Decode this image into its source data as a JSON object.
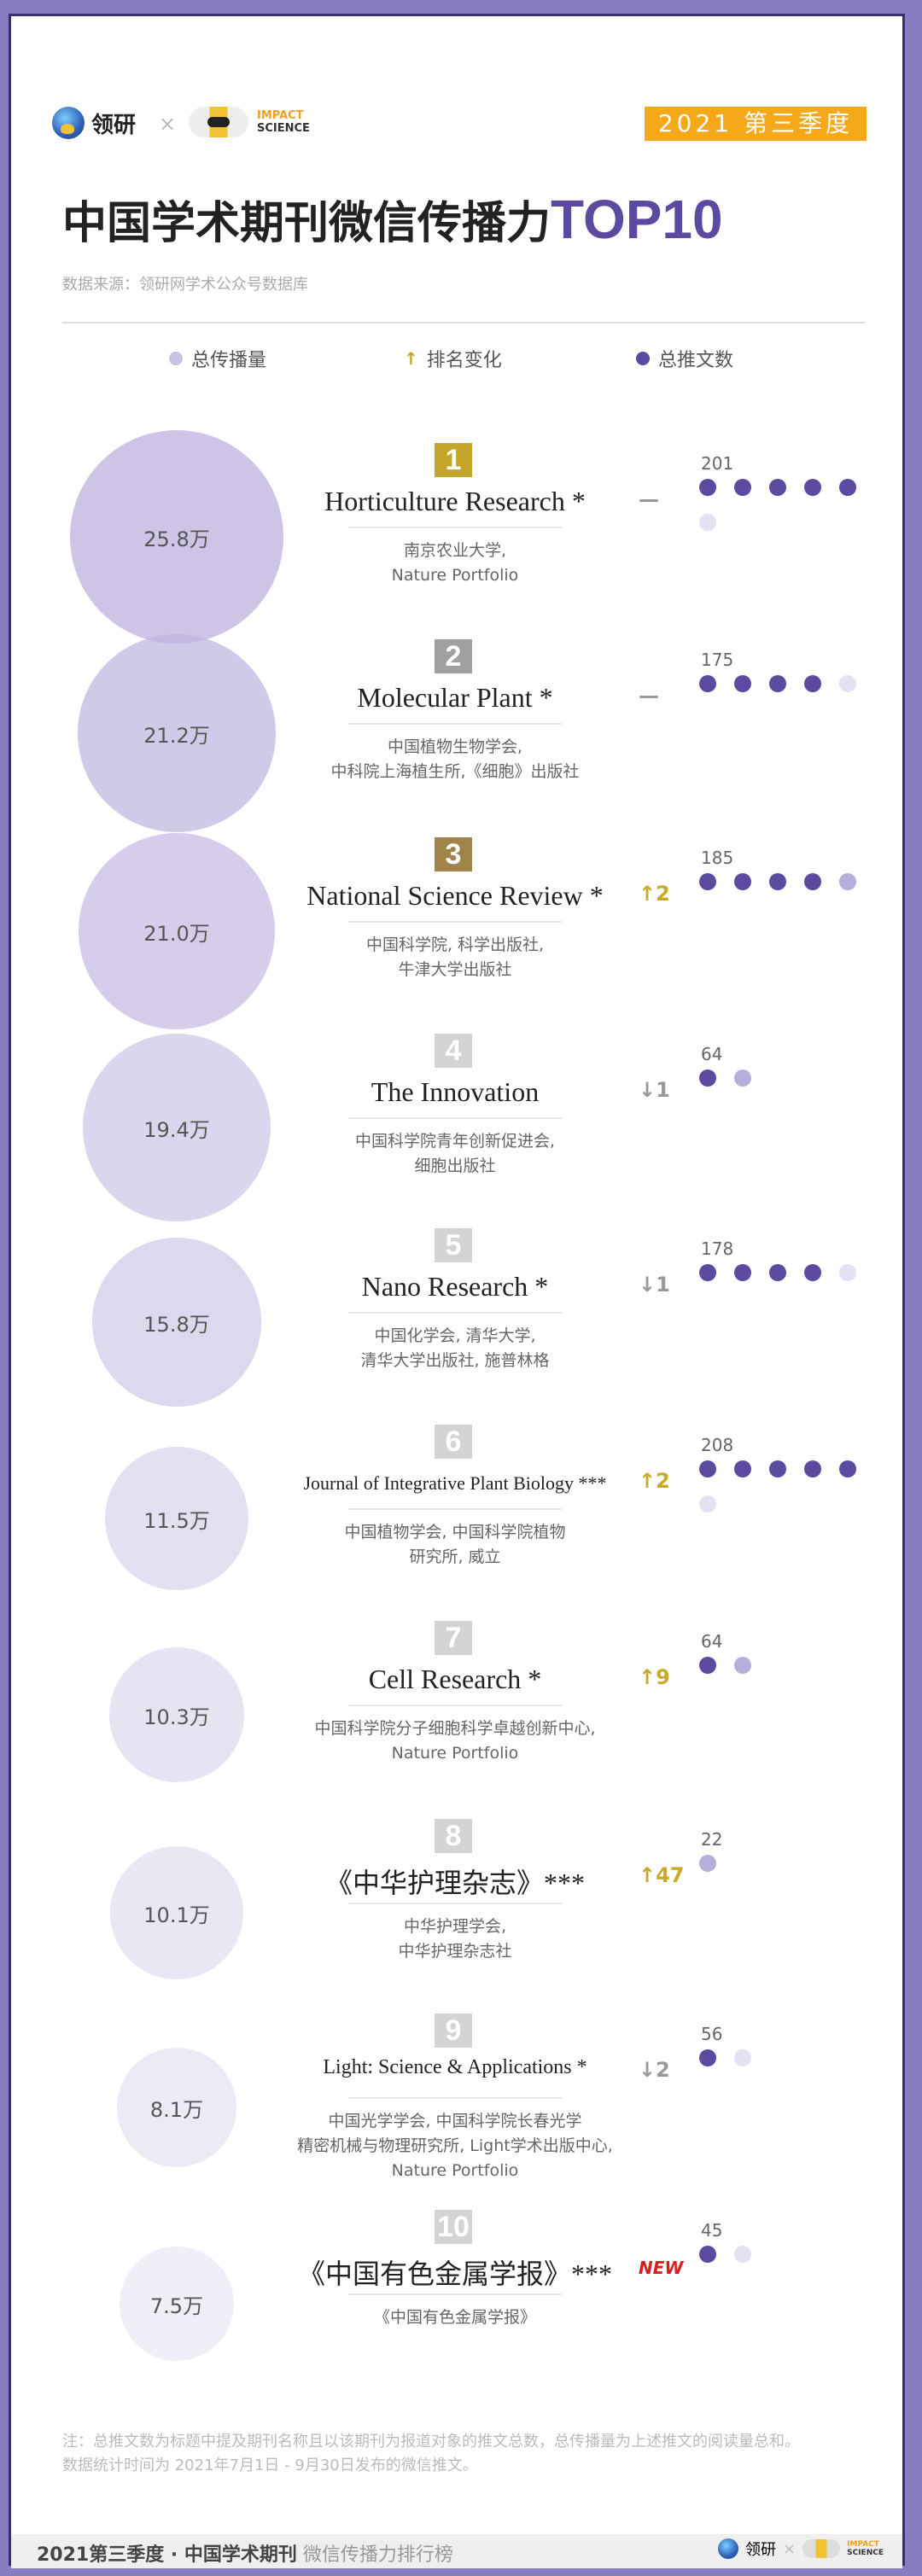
{
  "header": {
    "logo_text": "领研",
    "times": "×",
    "impact_line1": "IMPACT",
    "impact_line2": "SCIENCE",
    "quarter_badge": "2021 第三季度",
    "title_main": "中国学术期刊微信传播力",
    "title_top": "TOP10",
    "source": "数据来源：领研网学术公众号数据库"
  },
  "legend": {
    "spread": "总传播量",
    "rank_change": "排名变化",
    "posts": "总推文数",
    "arrow": "↑"
  },
  "colors": {
    "purple_dark": "#5b4aa0",
    "purple_light": "#b8aedb",
    "bubble": "#d6cfe9",
    "gold": "#c4a62a",
    "badge": "#f4a81a",
    "new": "#d62020"
  },
  "journals": [
    {
      "rank": "1",
      "name": "Horticulture Research *",
      "publisher": [
        "南京农业大学,",
        "Nature Portfolio"
      ],
      "spread": "25.8万",
      "change": "—",
      "change_type": "same",
      "posts": "201",
      "badge_color": "#c4a62a"
    },
    {
      "rank": "2",
      "name": "Molecular Plant *",
      "publisher": [
        "中国植物生物学会,",
        "中科院上海植生所,《细胞》出版社"
      ],
      "spread": "21.2万",
      "change": "—",
      "change_type": "same",
      "posts": "175",
      "badge_color": "#a0a0a0"
    },
    {
      "rank": "3",
      "name": "National Science Review *",
      "publisher": [
        "中国科学院, 科学出版社,",
        "牛津大学出版社"
      ],
      "spread": "21.0万",
      "change": "↑2",
      "change_type": "up",
      "posts": "185",
      "badge_color": "#a0844a"
    },
    {
      "rank": "4",
      "name": "The Innovation",
      "publisher": [
        "中国科学院青年创新促进会,",
        "细胞出版社"
      ],
      "spread": "19.4万",
      "change": "↓1",
      "change_type": "down",
      "posts": "64",
      "badge_color": "#d4d4d4"
    },
    {
      "rank": "5",
      "name": "Nano Research *",
      "publisher": [
        "中国化学会, 清华大学,",
        "清华大学出版社, 施普林格"
      ],
      "spread": "15.8万",
      "change": "↓1",
      "change_type": "down",
      "posts": "178",
      "badge_color": "#d4d4d4"
    },
    {
      "rank": "6",
      "name": "Journal of Integrative Plant Biology ***",
      "publisher": [
        "中国植物学会, 中国科学院植物",
        "研究所, 威立"
      ],
      "spread": "11.5万",
      "change": "↑2",
      "change_type": "up",
      "posts": "208",
      "badge_color": "#d4d4d4"
    },
    {
      "rank": "7",
      "name": "Cell Research *",
      "publisher": [
        "中国科学院分子细胞科学卓越创新中心,",
        "Nature Portfolio"
      ],
      "spread": "10.3万",
      "change": "↑9",
      "change_type": "up",
      "posts": "64",
      "badge_color": "#d4d4d4"
    },
    {
      "rank": "8",
      "name": "《中华护理杂志》***",
      "publisher": [
        "中华护理学会,",
        "中华护理杂志社"
      ],
      "spread": "10.1万",
      "change": "↑47",
      "change_type": "up",
      "posts": "22",
      "badge_color": "#d4d4d4"
    },
    {
      "rank": "9",
      "name": "Light: Science & Applications *",
      "publisher": [
        "中国光学学会, 中国科学院长春光学",
        "精密机械与物理研究所, Light学术出版中心,",
        "Nature Portfolio"
      ],
      "spread": "8.1万",
      "change": "↓2",
      "change_type": "down",
      "posts": "56",
      "badge_color": "#d4d4d4"
    },
    {
      "rank": "10",
      "name": "《中国有色金属学报》***",
      "publisher": [
        "《中国有色金属学报》"
      ],
      "spread": "7.5万",
      "change": "NEW",
      "change_type": "new",
      "posts": "45",
      "badge_color": "#d4d4d4"
    }
  ],
  "footnote": [
    "注：总推文数为标题中提及期刊名称且以该期刊为报道对象的推文总数，总传播量为上述推文的阅读量总和。",
    "数据统计时间为 2021年7月1日 - 9月30日发布的微信推文。"
  ],
  "footer": {
    "left_bold": "2021第三季度 · 中国学术期刊",
    "left_light": "微信传播力排行榜",
    "logo_text": "领研",
    "times": "×",
    "impact_line1": "IMPACT",
    "impact_line2": "SCIENCE"
  }
}
